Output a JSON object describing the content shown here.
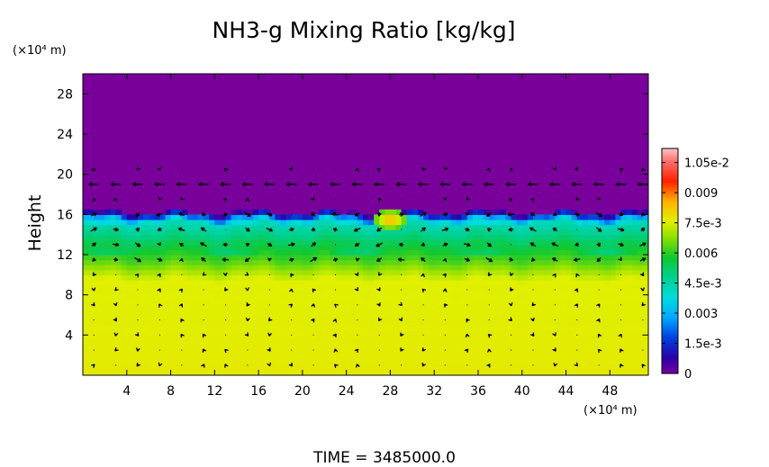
{
  "chart_data": {
    "type": "heatmap",
    "title": "NH3-g Mixing Ratio [kg/kg]",
    "ylabel": "Height",
    "x_unit": "(×10⁴ m)",
    "y_unit": "(×10⁴ m)",
    "xlim": [
      0,
      51.5
    ],
    "ylim": [
      0,
      30
    ],
    "x_ticks": [
      4,
      8,
      12,
      16,
      20,
      24,
      28,
      32,
      36,
      40,
      44,
      48
    ],
    "y_ticks": [
      4,
      8,
      12,
      16,
      20,
      24,
      28
    ],
    "footer": "TIME  =  3485000.0",
    "colorbar": {
      "min": 0,
      "max": 0.0112,
      "ticks": [
        {
          "value": 0,
          "label": "0"
        },
        {
          "value": 0.0015,
          "label": "1.5e-3"
        },
        {
          "value": 0.003,
          "label": "0.003"
        },
        {
          "value": 0.0045,
          "label": "4.5e-3"
        },
        {
          "value": 0.006,
          "label": "0.006"
        },
        {
          "value": 0.0075,
          "label": "7.5e-3"
        },
        {
          "value": 0.009,
          "label": "0.009"
        },
        {
          "value": 0.0105,
          "label": "1.05e-2"
        }
      ],
      "colors": [
        {
          "value": 0,
          "color": "#7a009c"
        },
        {
          "value": 0.0008,
          "color": "#2a00a8"
        },
        {
          "value": 0.0018,
          "color": "#0040e0"
        },
        {
          "value": 0.0028,
          "color": "#00a8ff"
        },
        {
          "value": 0.0038,
          "color": "#00dcdc"
        },
        {
          "value": 0.0048,
          "color": "#00d090"
        },
        {
          "value": 0.0058,
          "color": "#10c830"
        },
        {
          "value": 0.0068,
          "color": "#90e000"
        },
        {
          "value": 0.0076,
          "color": "#e0f000"
        },
        {
          "value": 0.0086,
          "color": "#ffb000"
        },
        {
          "value": 0.0096,
          "color": "#ff2000"
        },
        {
          "value": 0.0106,
          "color": "#ff7070"
        },
        {
          "value": 0.0112,
          "color": "#ffc0c0"
        }
      ]
    },
    "field_profile": [
      {
        "height": 0,
        "value": 0.0077
      },
      {
        "height": 9.5,
        "value": 0.0076
      },
      {
        "height": 10.5,
        "value": 0.0069
      },
      {
        "height": 11.5,
        "value": 0.0062
      },
      {
        "height": 12.5,
        "value": 0.0058
      },
      {
        "height": 13.5,
        "value": 0.0052
      },
      {
        "height": 14.5,
        "value": 0.0046
      },
      {
        "height": 15.3,
        "value": 0.0042
      },
      {
        "height": 15.8,
        "value": 0.002
      },
      {
        "height": 16.2,
        "value": 0.0002
      },
      {
        "height": 30,
        "value": 0
      }
    ],
    "features": [
      {
        "name": "wind vectors",
        "spacing_x": 2,
        "spacing_y": 1.5
      },
      {
        "name": "jet",
        "height": 19,
        "direction": "westward"
      },
      {
        "name": "plume",
        "x": 28,
        "height": 15.5,
        "peak_value": 0.009
      }
    ]
  }
}
